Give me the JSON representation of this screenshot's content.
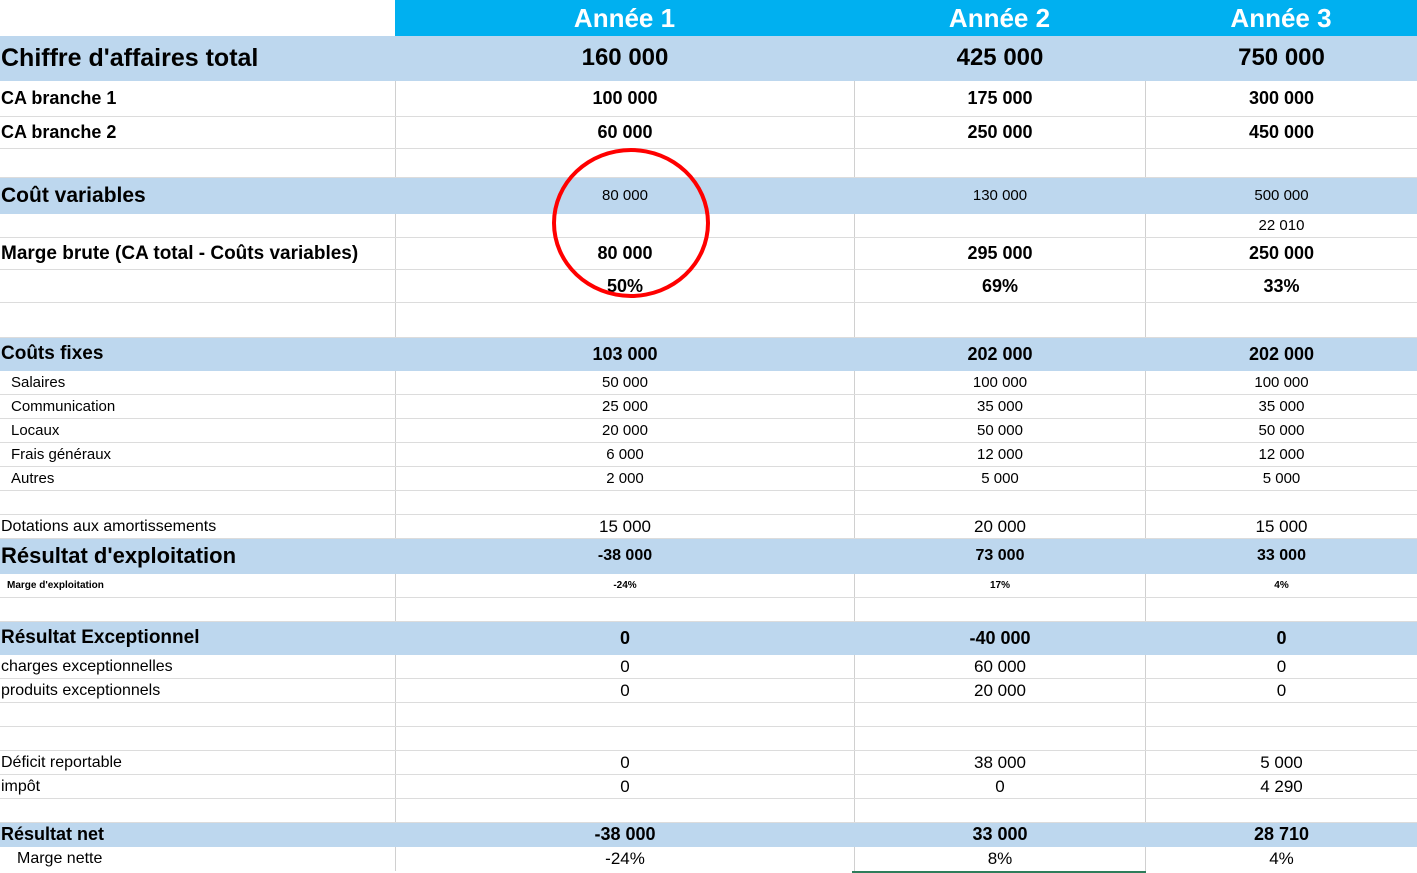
{
  "annotation_color": "#ff0000",
  "header": {
    "years": [
      "Année 1",
      "Année 2",
      "Année 3"
    ]
  },
  "rows": {
    "ca_total": {
      "label": "Chiffre d'affaires total",
      "values": [
        "160 000",
        "425 000",
        "750 000"
      ]
    },
    "ca_b1": {
      "label": "CA branche 1",
      "values": [
        "100 000",
        "175 000",
        "300 000"
      ]
    },
    "ca_b2": {
      "label": "CA branche 2",
      "values": [
        "60 000",
        "250 000",
        "450 000"
      ]
    },
    "couts_var": {
      "label": "Coût variables",
      "values": [
        "80 000",
        "130 000",
        "500 000"
      ]
    },
    "extra": {
      "values": [
        "",
        "",
        "22 010"
      ]
    },
    "marge_brute": {
      "label": "Marge brute (CA total - Coûts variables)",
      "values": [
        "80 000",
        "295 000",
        "250 000"
      ]
    },
    "marge_pct": {
      "values": [
        "50%",
        "69%",
        "33%"
      ]
    },
    "couts_fixes": {
      "label": "Coûts fixes",
      "values": [
        "103 000",
        "202 000",
        "202 000"
      ]
    },
    "salaires": {
      "label": "Salaires",
      "values": [
        "50 000",
        "100 000",
        "100 000"
      ]
    },
    "communication": {
      "label": "Communication",
      "values": [
        "25 000",
        "35 000",
        "35 000"
      ]
    },
    "locaux": {
      "label": "Locaux",
      "values": [
        "20 000",
        "50 000",
        "50 000"
      ]
    },
    "frais": {
      "label": "Frais généraux",
      "values": [
        "6 000",
        "12 000",
        "12 000"
      ]
    },
    "autres": {
      "label": "Autres",
      "values": [
        "2 000",
        "5 000",
        "5 000"
      ]
    },
    "dotations": {
      "label": "Dotations aux amortissements",
      "values": [
        "15 000",
        "20 000",
        "15 000"
      ]
    },
    "res_exploit": {
      "label": "Résultat d'exploitation",
      "values": [
        "-38 000",
        "73 000",
        "33 000"
      ]
    },
    "marge_exploit": {
      "label": "Marge d'exploitation",
      "values": [
        "-24%",
        "17%",
        "4%"
      ]
    },
    "res_except": {
      "label": "Résultat Exceptionnel",
      "values": [
        "0",
        "-40 000",
        "0"
      ]
    },
    "charges_exc": {
      "label": "charges exceptionnelles",
      "values": [
        "0",
        "60 000",
        "0"
      ]
    },
    "produits_exc": {
      "label": "produits exceptionnels",
      "values": [
        "0",
        "20 000",
        "0"
      ]
    },
    "deficit": {
      "label": "Déficit reportable",
      "values": [
        "0",
        "38 000",
        "5 000"
      ]
    },
    "impot": {
      "label": "impôt",
      "values": [
        "0",
        "0",
        "4 290"
      ]
    },
    "res_net": {
      "label": "Résultat net",
      "values": [
        "-38 000",
        "33 000",
        "28 710"
      ]
    },
    "marge_nette": {
      "label": "Marge nette",
      "values": [
        "-24%",
        "8%",
        "4%"
      ]
    }
  }
}
